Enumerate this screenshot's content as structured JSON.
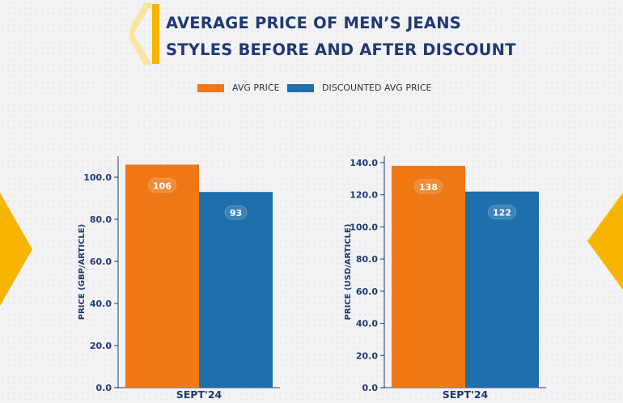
{
  "title": {
    "line1": "AVERAGE PRICE OF MEN’S JEANS",
    "line2": "STYLES BEFORE AND AFTER DISCOUNT"
  },
  "colors": {
    "accent": "#f7b500",
    "avg_price": "#f07814",
    "discounted": "#1f6fad",
    "text": "#1e3a73"
  },
  "legend": [
    {
      "label": "AVG PRICE",
      "color": "#f07814"
    },
    {
      "label": "DISCOUNTED AVG PRICE",
      "color": "#1f6fad"
    }
  ],
  "chart_data": [
    {
      "type": "bar",
      "categories": [
        "SEPT'24"
      ],
      "series": [
        {
          "name": "AVG PRICE",
          "values": [
            106
          ]
        },
        {
          "name": "DISCOUNTED AVG PRICE",
          "values": [
            93
          ]
        }
      ],
      "ylabel": "PRICE (GBP/ARTICLE)",
      "ylim": [
        0,
        110
      ],
      "yticks": [
        "0.0",
        "20.0",
        "40.0",
        "60.0",
        "80.0",
        "100.0"
      ],
      "value_labels": [
        "106",
        "93"
      ],
      "grid": false,
      "legend": "top"
    },
    {
      "type": "bar",
      "categories": [
        "SEPT'24"
      ],
      "series": [
        {
          "name": "AVG PRICE",
          "values": [
            138
          ]
        },
        {
          "name": "DISCOUNTED AVG PRICE",
          "values": [
            122
          ]
        }
      ],
      "ylabel": "PRICE (USD/ARTICLE)",
      "ylim": [
        0,
        144
      ],
      "yticks": [
        "0.0",
        "20.0",
        "40.0",
        "60.0",
        "80.0",
        "100.0",
        "120.0",
        "140.0"
      ],
      "value_labels": [
        "138",
        "122"
      ],
      "grid": false,
      "legend": "top"
    }
  ]
}
